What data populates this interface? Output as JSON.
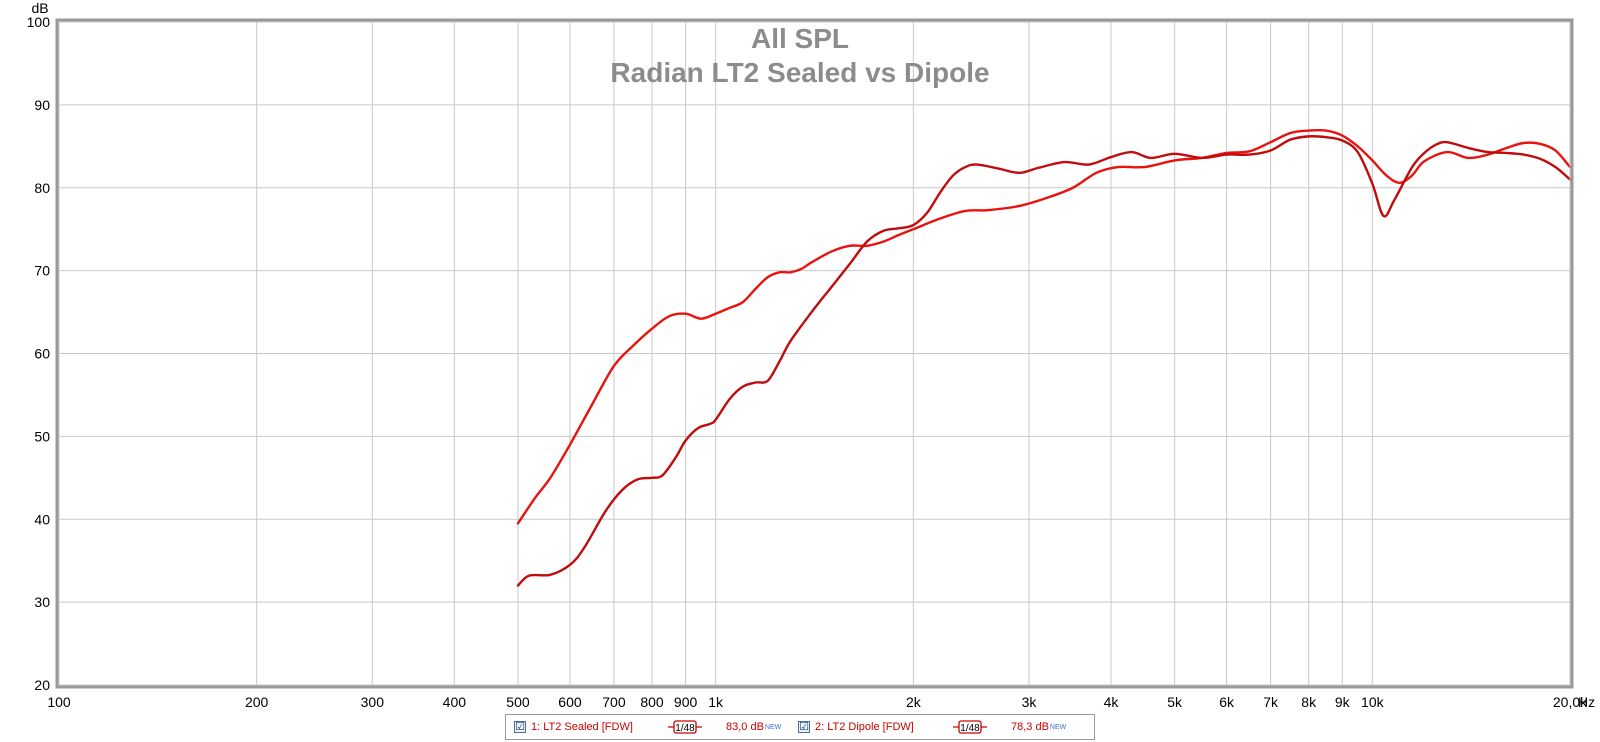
{
  "chart_data": {
    "type": "line",
    "title": "All SPL",
    "subtitle": "Radian LT2 Sealed vs Dipole",
    "ylabel": "dB",
    "xlabel": "Hz",
    "x_scale": "log",
    "xlim": [
      100,
      20000
    ],
    "ylim": [
      20,
      100
    ],
    "grid": true,
    "y_ticks": [
      20,
      30,
      40,
      50,
      60,
      70,
      80,
      90,
      100
    ],
    "x_ticks": [
      {
        "value": 100,
        "label": "100"
      },
      {
        "value": 200,
        "label": "200"
      },
      {
        "value": 300,
        "label": "300"
      },
      {
        "value": 400,
        "label": "400"
      },
      {
        "value": 500,
        "label": "500"
      },
      {
        "value": 600,
        "label": "600"
      },
      {
        "value": 700,
        "label": "700"
      },
      {
        "value": 800,
        "label": "800"
      },
      {
        "value": 900,
        "label": "900"
      },
      {
        "value": 1000,
        "label": "1k"
      },
      {
        "value": 2000,
        "label": "2k"
      },
      {
        "value": 3000,
        "label": "3k"
      },
      {
        "value": 4000,
        "label": "4k"
      },
      {
        "value": 5000,
        "label": "5k"
      },
      {
        "value": 6000,
        "label": "6k"
      },
      {
        "value": 7000,
        "label": "7k"
      },
      {
        "value": 8000,
        "label": "8k"
      },
      {
        "value": 9000,
        "label": "9k"
      },
      {
        "value": 10000,
        "label": "10k"
      },
      {
        "value": 20000,
        "label": "20,0k"
      }
    ],
    "series": [
      {
        "name": "1: LT2 Sealed [FDW]",
        "color": "#e8130f",
        "points": [
          [
            500,
            39.5
          ],
          [
            530,
            42.5
          ],
          [
            560,
            45
          ],
          [
            600,
            49
          ],
          [
            650,
            54
          ],
          [
            700,
            58.5
          ],
          [
            750,
            61
          ],
          [
            800,
            63
          ],
          [
            850,
            64.5
          ],
          [
            900,
            64.8
          ],
          [
            950,
            64.2
          ],
          [
            1000,
            64.8
          ],
          [
            1050,
            65.5
          ],
          [
            1100,
            66.2
          ],
          [
            1150,
            67.8
          ],
          [
            1200,
            69.2
          ],
          [
            1250,
            69.8
          ],
          [
            1300,
            69.8
          ],
          [
            1350,
            70.2
          ],
          [
            1400,
            71
          ],
          [
            1500,
            72.3
          ],
          [
            1600,
            73
          ],
          [
            1700,
            73
          ],
          [
            1800,
            73.5
          ],
          [
            1900,
            74.3
          ],
          [
            2000,
            75
          ],
          [
            2200,
            76.3
          ],
          [
            2400,
            77.2
          ],
          [
            2600,
            77.3
          ],
          [
            2900,
            77.8
          ],
          [
            3200,
            78.8
          ],
          [
            3500,
            80
          ],
          [
            3800,
            81.8
          ],
          [
            4100,
            82.5
          ],
          [
            4500,
            82.5
          ],
          [
            5000,
            83.3
          ],
          [
            5500,
            83.6
          ],
          [
            6000,
            84.2
          ],
          [
            6500,
            84.4
          ],
          [
            7000,
            85.5
          ],
          [
            7500,
            86.6
          ],
          [
            8000,
            86.9
          ],
          [
            8500,
            86.9
          ],
          [
            9000,
            86.3
          ],
          [
            9500,
            85
          ],
          [
            10000,
            83.3
          ],
          [
            10500,
            81.5
          ],
          [
            11000,
            80.6
          ],
          [
            11500,
            81.5
          ],
          [
            12000,
            83.2
          ],
          [
            13000,
            84.3
          ],
          [
            14000,
            83.6
          ],
          [
            15000,
            84
          ],
          [
            16000,
            84.8
          ],
          [
            17000,
            85.4
          ],
          [
            18000,
            85.3
          ],
          [
            19000,
            84.5
          ],
          [
            20000,
            82.5
          ]
        ]
      },
      {
        "name": "2: LT2 Dipole [FDW]",
        "color": "#c00c0c",
        "points": [
          [
            500,
            32
          ],
          [
            520,
            33.2
          ],
          [
            560,
            33.3
          ],
          [
            600,
            34.5
          ],
          [
            630,
            36.5
          ],
          [
            680,
            41
          ],
          [
            720,
            43.5
          ],
          [
            760,
            44.8
          ],
          [
            800,
            45
          ],
          [
            830,
            45.3
          ],
          [
            870,
            47.5
          ],
          [
            900,
            49.5
          ],
          [
            940,
            51
          ],
          [
            980,
            51.5
          ],
          [
            1000,
            52
          ],
          [
            1050,
            54.5
          ],
          [
            1100,
            56
          ],
          [
            1150,
            56.5
          ],
          [
            1200,
            56.7
          ],
          [
            1250,
            59
          ],
          [
            1300,
            61.5
          ],
          [
            1400,
            65
          ],
          [
            1500,
            68
          ],
          [
            1600,
            70.8
          ],
          [
            1700,
            73.5
          ],
          [
            1800,
            74.8
          ],
          [
            1900,
            75.1
          ],
          [
            2000,
            75.5
          ],
          [
            2100,
            77
          ],
          [
            2200,
            79.5
          ],
          [
            2300,
            81.5
          ],
          [
            2400,
            82.5
          ],
          [
            2500,
            82.8
          ],
          [
            2700,
            82.3
          ],
          [
            2900,
            81.8
          ],
          [
            3100,
            82.4
          ],
          [
            3400,
            83.1
          ],
          [
            3700,
            82.8
          ],
          [
            4000,
            83.7
          ],
          [
            4300,
            84.3
          ],
          [
            4600,
            83.6
          ],
          [
            5000,
            84.1
          ],
          [
            5500,
            83.6
          ],
          [
            6000,
            84
          ],
          [
            6500,
            84
          ],
          [
            7000,
            84.5
          ],
          [
            7500,
            85.8
          ],
          [
            8000,
            86.2
          ],
          [
            8500,
            86.1
          ],
          [
            9000,
            85.7
          ],
          [
            9500,
            84.3
          ],
          [
            10000,
            80.5
          ],
          [
            10400,
            76.6
          ],
          [
            10800,
            78.5
          ],
          [
            11500,
            82.5
          ],
          [
            12000,
            84.2
          ],
          [
            12500,
            85.2
          ],
          [
            13000,
            85.5
          ],
          [
            14000,
            84.8
          ],
          [
            15000,
            84.3
          ],
          [
            16000,
            84.2
          ],
          [
            17000,
            84
          ],
          [
            18000,
            83.5
          ],
          [
            19000,
            82.5
          ],
          [
            20000,
            81
          ]
        ]
      }
    ]
  },
  "legend": {
    "items": [
      {
        "checkbox": "☑",
        "label": "1: LT2 Sealed [FDW]",
        "smoothing": "1/48",
        "value": "83,0 dB",
        "badge": "NEW"
      },
      {
        "checkbox": "☑",
        "label": "2: LT2 Dipole [FDW]",
        "smoothing": "1/48",
        "value": "78,3 dB",
        "badge": "NEW"
      }
    ]
  }
}
